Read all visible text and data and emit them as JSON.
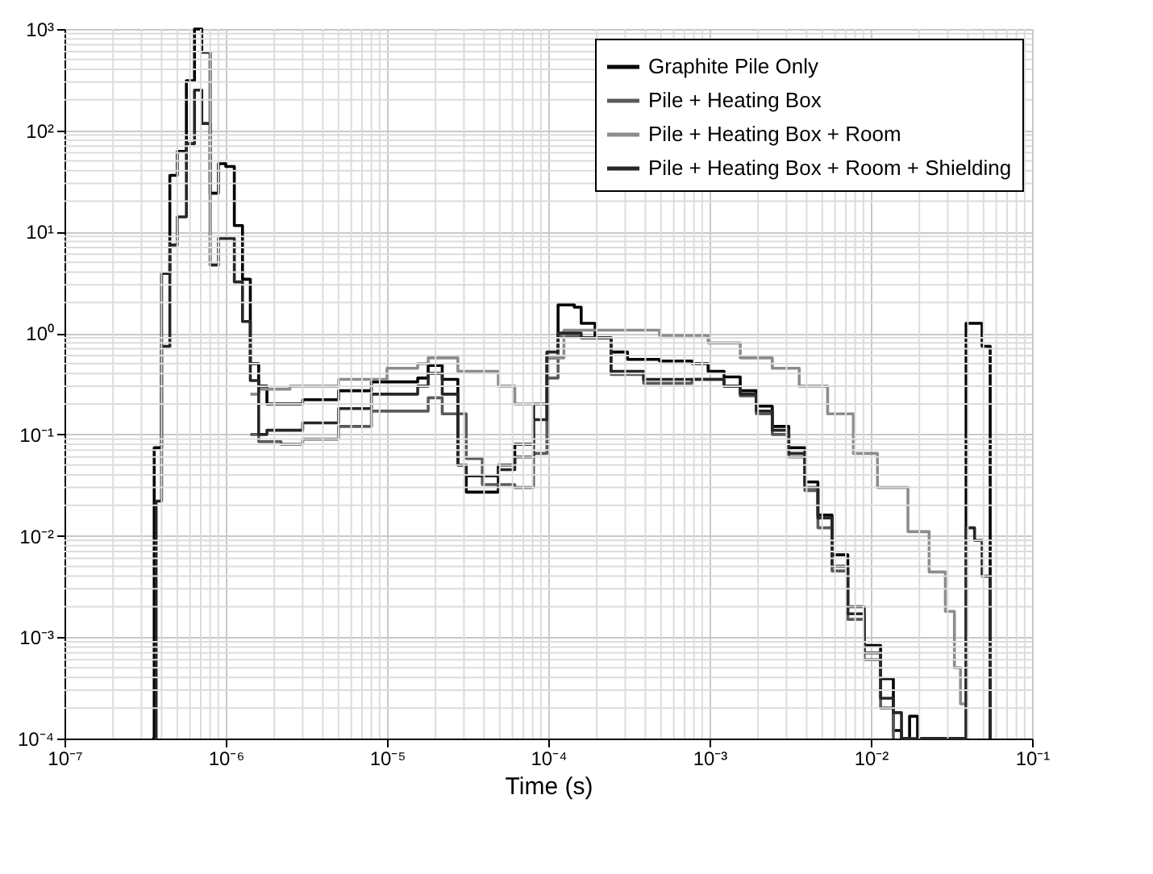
{
  "chart_data": {
    "type": "step",
    "xlabel": "Time (s)",
    "log": "xy",
    "grid": true,
    "legend": "top right",
    "marker": "none",
    "line_style": "solid",
    "xlim": [
      1e-07,
      0.1
    ],
    "ylim": [
      0.0001,
      1000
    ],
    "xticks": [
      {
        "value": 1e-07,
        "label": "10⁻⁷"
      },
      {
        "value": 1e-06,
        "label": "10⁻⁶"
      },
      {
        "value": 1e-05,
        "label": "10⁻⁵"
      },
      {
        "value": 0.0001,
        "label": "10⁻⁴"
      },
      {
        "value": 0.001,
        "label": "10⁻³"
      },
      {
        "value": 0.01,
        "label": "10⁻²"
      },
      {
        "value": 0.1,
        "label": "10⁻¹"
      }
    ],
    "yticks": [
      {
        "value": 0.0001,
        "label": "10⁻⁴"
      },
      {
        "value": 0.001,
        "label": "10⁻³"
      },
      {
        "value": 0.01,
        "label": "10⁻²"
      },
      {
        "value": 0.1,
        "label": "10⁻¹"
      },
      {
        "value": 1,
        "label": "10⁰"
      },
      {
        "value": 10,
        "label": "10¹"
      },
      {
        "value": 100,
        "label": "10²"
      },
      {
        "value": 1000,
        "label": "10³"
      }
    ],
    "series": [
      {
        "name": "Graphite Pile Only",
        "color": "#000000",
        "x": [
          3.5e-07,
          3.6e-07,
          4e-07,
          4.5e-07,
          5e-07,
          5.7e-07,
          6.4e-07,
          7.1e-07,
          8e-07,
          9e-07,
          1e-06,
          1.13e-06,
          1.27e-06,
          1.42e-06,
          1.6e-06,
          1.8e-06,
          3e-06,
          5e-06,
          8e-06,
          1.55e-05,
          1.8e-05,
          2.2e-05,
          2.75e-05,
          3.1e-05,
          4.9e-05,
          6.2e-05,
          8.1e-05,
          9.8e-05,
          0.000115,
          0.000145,
          0.00016,
          0.000195,
          0.000245,
          0.00031,
          0.00049,
          0.00078,
          0.00098,
          0.00123,
          0.00155,
          0.00195,
          0.00245,
          0.0031,
          0.0039,
          0.0047,
          0.00575,
          0.0072,
          0.0091,
          0.0115,
          0.0138,
          0.0155,
          0.0174,
          0.0195,
          0.039,
          0.049,
          0.055
        ],
        "values": [
          0.0001,
          0.074,
          3.9,
          36,
          62,
          310,
          1000,
          590,
          24,
          47,
          44,
          11.5,
          3.4,
          0.5,
          0.3,
          0.2,
          0.22,
          0.27,
          0.33,
          0.36,
          0.48,
          0.35,
          0.05,
          0.027,
          0.05,
          0.08,
          0.2,
          0.57,
          1.9,
          1.8,
          1.25,
          0.9,
          0.65,
          0.55,
          0.53,
          0.5,
          0.42,
          0.37,
          0.27,
          0.19,
          0.12,
          0.074,
          0.034,
          0.016,
          0.0065,
          0.002,
          0.00083,
          0.00039,
          0.00012,
          0.0001,
          0.000166,
          0.0001,
          1.25,
          0.74,
          0.0001
        ]
      },
      {
        "name": "Pile + Heating Box",
        "color": "#5a5a5a",
        "x": [
          1.42e-06,
          1.6e-06,
          2.2e-06,
          3e-06,
          5e-06,
          8e-06,
          1.55e-05,
          1.8e-05,
          2.2e-05,
          3.1e-05,
          3.9e-05,
          6.2e-05,
          8.1e-05,
          9.8e-05,
          0.000115,
          0.00016,
          0.000245,
          0.00039,
          0.00078,
          0.00123,
          0.00155,
          0.00195,
          0.00245,
          0.0031,
          0.0039,
          0.0047,
          0.00575,
          0.0072,
          0.0091,
          0.0115,
          0.0138
        ],
        "values": [
          0.1,
          0.085,
          0.08,
          0.09,
          0.12,
          0.17,
          0.17,
          0.23,
          0.16,
          0.058,
          0.032,
          0.03,
          0.065,
          0.36,
          0.93,
          0.9,
          0.39,
          0.32,
          0.35,
          0.3,
          0.24,
          0.16,
          0.1,
          0.06,
          0.028,
          0.012,
          0.0045,
          0.0015,
          0.0006,
          0.0002,
          0.0001
        ]
      },
      {
        "name": "Pile + Heating Box + Room",
        "color": "#8c8c8c",
        "x": [
          1.42e-06,
          1.6e-06,
          2.5e-06,
          5e-06,
          1e-05,
          1.55e-05,
          1.8e-05,
          2.75e-05,
          4.9e-05,
          6.2e-05,
          8.1e-05,
          9.8e-05,
          0.000125,
          0.000245,
          0.00049,
          0.00098,
          0.00155,
          0.00245,
          0.0036,
          0.0054,
          0.0078,
          0.011,
          0.017,
          0.023,
          0.029,
          0.033,
          0.036,
          0.039
        ],
        "values": [
          0.25,
          0.28,
          0.3,
          0.35,
          0.45,
          0.5,
          0.57,
          0.42,
          0.3,
          0.2,
          0.2,
          0.57,
          1.07,
          1.07,
          0.95,
          0.8,
          0.57,
          0.45,
          0.3,
          0.16,
          0.065,
          0.03,
          0.011,
          0.0044,
          0.0018,
          0.0005,
          0.00022,
          0.0001
        ]
      },
      {
        "name": "Pile + Heating Box + Room + Shielding",
        "color": "#262626",
        "x": [
          3.6e-07,
          3.7e-07,
          4e-07,
          4.5e-07,
          5e-07,
          5.7e-07,
          6.4e-07,
          7.1e-07,
          8e-07,
          9e-07,
          1.13e-06,
          1.27e-06,
          1.42e-06,
          1.6e-06,
          1.8e-06,
          3e-06,
          5e-06,
          8e-06,
          1.55e-05,
          1.8e-05,
          2.2e-05,
          2.75e-05,
          3.1e-05,
          4.9e-05,
          6.2e-05,
          8.1e-05,
          9.8e-05,
          0.000115,
          0.00016,
          0.000245,
          0.00039,
          0.00078,
          0.00123,
          0.00155,
          0.00195,
          0.00245,
          0.0031,
          0.0039,
          0.0047,
          0.00575,
          0.0072,
          0.0091,
          0.0115,
          0.0138,
          0.0155,
          0.039,
          0.044,
          0.049,
          0.055
        ],
        "values": [
          0.0001,
          0.022,
          0.74,
          7.4,
          14,
          74,
          250,
          117,
          4.7,
          8.6,
          3.2,
          1.3,
          0.34,
          0.1,
          0.11,
          0.13,
          0.18,
          0.25,
          0.3,
          0.4,
          0.25,
          0.05,
          0.039,
          0.045,
          0.06,
          0.14,
          0.65,
          1.0,
          0.9,
          0.42,
          0.35,
          0.35,
          0.3,
          0.25,
          0.17,
          0.11,
          0.065,
          0.03,
          0.015,
          0.005,
          0.0017,
          0.0007,
          0.00025,
          0.00018,
          0.0001,
          0.012,
          0.009,
          0.004,
          0.0001
        ]
      }
    ]
  }
}
